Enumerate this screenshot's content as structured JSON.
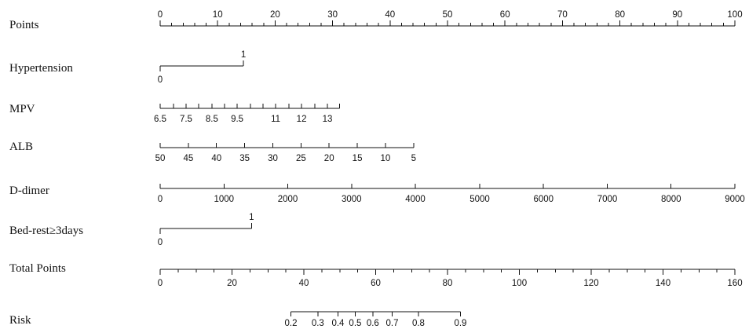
{
  "chart_data": {
    "type": "nomogram",
    "rows": [
      {
        "label": "Points",
        "axis_min": 0,
        "axis_max": 100,
        "labels_above": true,
        "ticks": [
          {
            "v": 0,
            "t": "0"
          },
          {
            "v": 10,
            "t": "10"
          },
          {
            "v": 20,
            "t": "20"
          },
          {
            "v": 30,
            "t": "30"
          },
          {
            "v": 40,
            "t": "40"
          },
          {
            "v": 50,
            "t": "50"
          },
          {
            "v": 60,
            "t": "60"
          },
          {
            "v": 70,
            "t": "70"
          },
          {
            "v": 80,
            "t": "80"
          },
          {
            "v": 90,
            "t": "90"
          },
          {
            "v": 100,
            "t": "100"
          }
        ],
        "minor_step": 2
      },
      {
        "label": "Hypertension",
        "type": "binary",
        "points_zero": 0,
        "points_one": 14.5,
        "ticks": [
          {
            "points": 0,
            "t": "0",
            "pos": "below"
          },
          {
            "points": 14.5,
            "t": "1",
            "pos": "above"
          }
        ]
      },
      {
        "label": "MPV",
        "labels_below": true,
        "ticks": [
          {
            "points": 0,
            "t": "6.5"
          },
          {
            "points": 2.3,
            "t": ""
          },
          {
            "points": 4.5,
            "t": "7.5"
          },
          {
            "points": 6.7,
            "t": ""
          },
          {
            "points": 9.0,
            "t": "8.5"
          },
          {
            "points": 11.2,
            "t": ""
          },
          {
            "points": 13.4,
            "t": "9.5"
          },
          {
            "points": 15.7,
            "t": ""
          },
          {
            "points": 17.9,
            "t": ""
          },
          {
            "points": 20.1,
            "t": "11"
          },
          {
            "points": 22.4,
            "t": ""
          },
          {
            "points": 24.6,
            "t": "12"
          },
          {
            "points": 26.9,
            "t": ""
          },
          {
            "points": 29.1,
            "t": "13"
          },
          {
            "points": 31.2,
            "t": ""
          }
        ]
      },
      {
        "label": "ALB",
        "labels_below": true,
        "ticks": [
          {
            "points": 0,
            "t": "50"
          },
          {
            "points": 4.9,
            "t": "45"
          },
          {
            "points": 9.8,
            "t": "40"
          },
          {
            "points": 14.7,
            "t": "35"
          },
          {
            "points": 19.6,
            "t": "30"
          },
          {
            "points": 24.5,
            "t": "25"
          },
          {
            "points": 29.4,
            "t": "20"
          },
          {
            "points": 34.3,
            "t": "15"
          },
          {
            "points": 39.2,
            "t": "10"
          },
          {
            "points": 44.1,
            "t": "5"
          }
        ]
      },
      {
        "label": "D-dimer",
        "labels_below": true,
        "ticks": [
          {
            "points": 0,
            "t": "0"
          },
          {
            "points": 11.1,
            "t": "1000"
          },
          {
            "points": 22.2,
            "t": "2000"
          },
          {
            "points": 33.3,
            "t": "3000"
          },
          {
            "points": 44.4,
            "t": "4000"
          },
          {
            "points": 55.6,
            "t": "5000"
          },
          {
            "points": 66.7,
            "t": "6000"
          },
          {
            "points": 77.8,
            "t": "7000"
          },
          {
            "points": 88.9,
            "t": "8000"
          },
          {
            "points": 100,
            "t": "9000"
          }
        ]
      },
      {
        "label": "Bed-rest≥3days",
        "type": "binary",
        "points_zero": 0,
        "points_one": 15.9,
        "ticks": [
          {
            "points": 0,
            "t": "0",
            "pos": "below"
          },
          {
            "points": 15.9,
            "t": "1",
            "pos": "above"
          }
        ]
      },
      {
        "label": "Total Points",
        "axis_min": 0,
        "axis_max": 160,
        "labels_below": true,
        "ticks": [
          {
            "v": 0,
            "t": "0"
          },
          {
            "v": 20,
            "t": "20"
          },
          {
            "v": 40,
            "t": "40"
          },
          {
            "v": 60,
            "t": "60"
          },
          {
            "v": 80,
            "t": "80"
          },
          {
            "v": 100,
            "t": "100"
          },
          {
            "v": 120,
            "t": "120"
          },
          {
            "v": 140,
            "t": "140"
          },
          {
            "v": 160,
            "t": "160"
          }
        ],
        "minor_step": 5
      },
      {
        "label": "Risk",
        "labels_below": true,
        "scale": "total_points",
        "ticks": [
          {
            "total": 36.4,
            "t": "0.2"
          },
          {
            "total": 43.9,
            "t": "0.3"
          },
          {
            "total": 49.5,
            "t": "0.4"
          },
          {
            "total": 54.3,
            "t": "0.5"
          },
          {
            "total": 59.2,
            "t": "0.6"
          },
          {
            "total": 64.6,
            "t": "0.7"
          },
          {
            "total": 71.9,
            "t": "0.8"
          },
          {
            "total": 83.6,
            "t": "0.9"
          }
        ]
      }
    ]
  }
}
